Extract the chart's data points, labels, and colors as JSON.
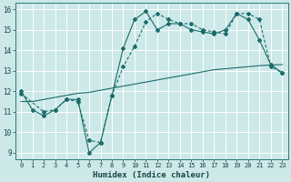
{
  "xlabel": "Humidex (Indice chaleur)",
  "background_color": "#cce8e8",
  "grid_color": "#ffffff",
  "line_color": "#1a6b6b",
  "xlim": [
    -0.5,
    23.5
  ],
  "ylim": [
    8.7,
    16.3
  ],
  "xticks": [
    0,
    1,
    2,
    3,
    4,
    5,
    6,
    7,
    8,
    9,
    10,
    11,
    12,
    13,
    14,
    15,
    16,
    17,
    18,
    19,
    20,
    21,
    22,
    23
  ],
  "yticks": [
    9,
    10,
    11,
    12,
    13,
    14,
    15,
    16
  ],
  "line1_x": [
    0,
    1,
    2,
    3,
    4,
    5,
    6,
    7,
    8,
    9,
    10,
    11,
    12,
    13,
    14,
    15,
    16,
    17,
    18,
    19,
    20,
    21,
    22,
    23
  ],
  "line1_y": [
    12.0,
    11.1,
    10.8,
    11.1,
    11.6,
    11.6,
    9.0,
    9.5,
    11.8,
    14.1,
    15.5,
    15.9,
    15.0,
    15.3,
    15.3,
    15.0,
    14.9,
    14.8,
    15.0,
    15.8,
    15.5,
    14.5,
    13.3,
    12.9
  ],
  "line2_x": [
    0,
    2,
    3,
    4,
    5,
    6,
    7,
    8,
    9,
    10,
    11,
    12,
    13,
    14,
    15,
    16,
    17,
    18,
    19,
    20,
    21,
    22,
    23
  ],
  "line2_y": [
    11.9,
    11.0,
    11.1,
    11.6,
    11.5,
    9.6,
    9.5,
    11.8,
    13.2,
    14.2,
    15.4,
    15.8,
    15.5,
    15.3,
    15.3,
    15.0,
    14.9,
    14.8,
    15.8,
    15.8,
    15.5,
    13.2,
    12.9
  ],
  "line3_x": [
    0,
    1,
    2,
    3,
    4,
    5,
    6,
    7,
    8,
    9,
    10,
    11,
    12,
    13,
    14,
    15,
    16,
    17,
    18,
    19,
    20,
    21,
    22,
    23
  ],
  "line3_y": [
    11.5,
    11.5,
    11.6,
    11.7,
    11.8,
    11.9,
    11.95,
    12.05,
    12.15,
    12.25,
    12.35,
    12.45,
    12.55,
    12.65,
    12.75,
    12.85,
    12.95,
    13.05,
    13.1,
    13.15,
    13.2,
    13.25,
    13.28,
    13.3
  ]
}
